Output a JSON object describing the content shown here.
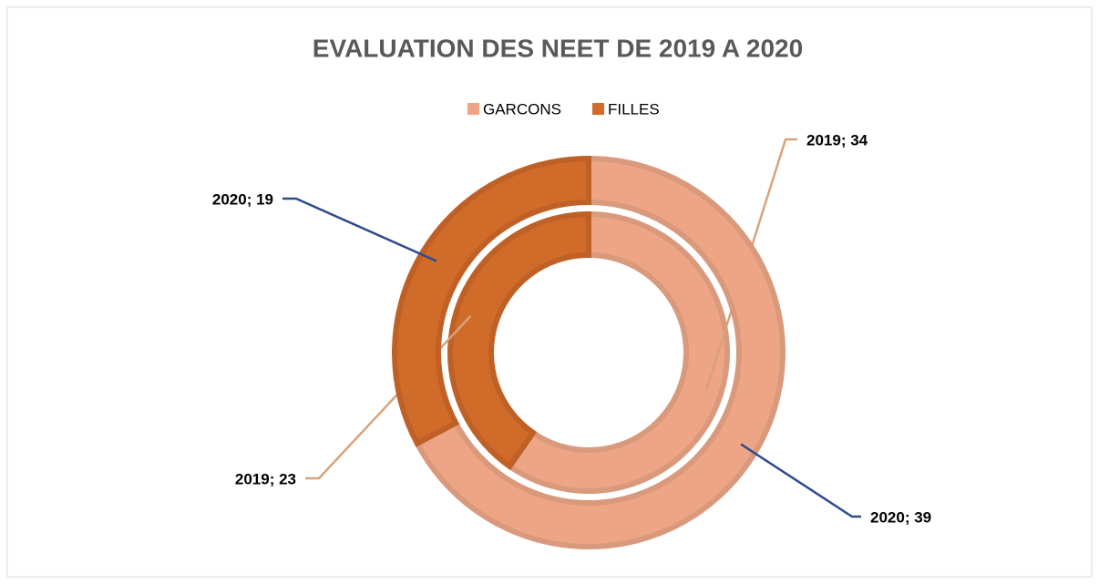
{
  "chart_data": {
    "type": "doughnut",
    "title": "EVALUATION DES NEET DE 2019 A 2020",
    "categories": [
      "GARCONS",
      "FILLES"
    ],
    "colors": [
      "#eea585",
      "#d06b29"
    ],
    "series": [
      {
        "name": "2019",
        "color": "#d8a27a",
        "values": [
          34,
          23
        ],
        "value_labels": [
          "2019; 34",
          "2019; 23"
        ]
      },
      {
        "name": "2020",
        "color": "#2f4b8c",
        "values": [
          39,
          19
        ],
        "value_labels": [
          "2020; 39",
          "2020; 19"
        ]
      }
    ],
    "legend": "top"
  }
}
